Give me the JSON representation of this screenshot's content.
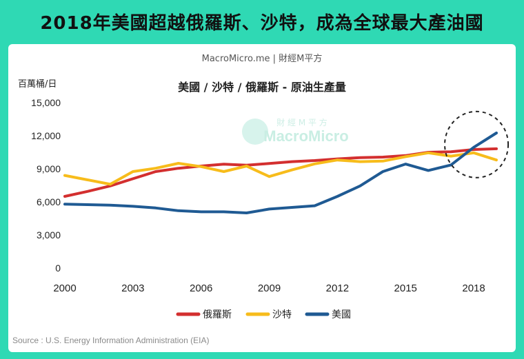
{
  "headline": "2018年美國超越俄羅斯、沙特，成為全球最大產油國",
  "credit": "MacroMicro.me | 財經M平方",
  "watermark": {
    "top_text": "財 經 M 平 方",
    "brand_text": "MacroMicro"
  },
  "source": "Source : U.S. Energy Information Administration (EIA)",
  "colors": {
    "russia": "#d32f2f",
    "saudi": "#f7bc1b",
    "usa": "#1f5a93",
    "background": "#2fd9b4"
  },
  "chart_data": {
    "type": "line",
    "title": "美國 / 沙特 / 俄羅斯 - 原油生產量",
    "ylabel": "百萬桶/日",
    "xlabel": "",
    "ylim": [
      0,
      15000
    ],
    "xlim": [
      2000,
      2019
    ],
    "yticks": [
      "0",
      "3,000",
      "6,000",
      "9,000",
      "12,000",
      "15,000"
    ],
    "ytick_values": [
      0,
      3000,
      6000,
      9000,
      12000,
      15000
    ],
    "xticks": [
      "2000",
      "2003",
      "2006",
      "2009",
      "2012",
      "2015",
      "2018"
    ],
    "xtick_values": [
      2000,
      2003,
      2006,
      2009,
      2012,
      2015,
      2018
    ],
    "grid": false,
    "legend_position": "bottom",
    "annotation": "dashed circle around 2017-2019 crossover",
    "x": [
      2000,
      2001,
      2002,
      2003,
      2004,
      2005,
      2006,
      2007,
      2008,
      2009,
      2010,
      2011,
      2012,
      2013,
      2014,
      2015,
      2016,
      2017,
      2018,
      2019
    ],
    "series": [
      {
        "name": "俄羅斯",
        "key": "russia",
        "values": [
          6500,
          6950,
          7450,
          8100,
          8750,
          9050,
          9250,
          9420,
          9330,
          9480,
          9650,
          9750,
          9900,
          10020,
          10060,
          10200,
          10500,
          10550,
          10750,
          10820
        ]
      },
      {
        "name": "沙特",
        "key": "saudi",
        "values": [
          8400,
          8000,
          7600,
          8750,
          9050,
          9500,
          9200,
          8750,
          9250,
          8300,
          8900,
          9450,
          9800,
          9650,
          9700,
          10100,
          10450,
          10150,
          10450,
          9800
        ]
      },
      {
        "name": "美國",
        "key": "usa",
        "values": [
          5800,
          5750,
          5700,
          5600,
          5450,
          5200,
          5100,
          5100,
          5000,
          5350,
          5500,
          5650,
          6500,
          7450,
          8750,
          9430,
          8850,
          9350,
          10950,
          12250
        ]
      }
    ]
  }
}
